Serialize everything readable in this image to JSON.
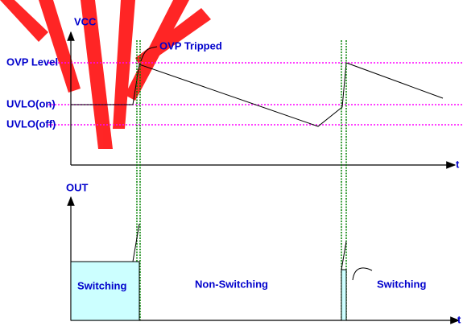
{
  "vcc_axis": {
    "label": "VCC",
    "time_label": "t"
  },
  "levels": [
    "OVP Level",
    "UVLO(on)",
    "UVLO(off)"
  ],
  "annotation": "OVP Tripped",
  "out_axis": {
    "label": "OUT",
    "time_label": "t"
  },
  "regions": [
    "Switching",
    "Non-Switching",
    "Switching"
  ]
}
